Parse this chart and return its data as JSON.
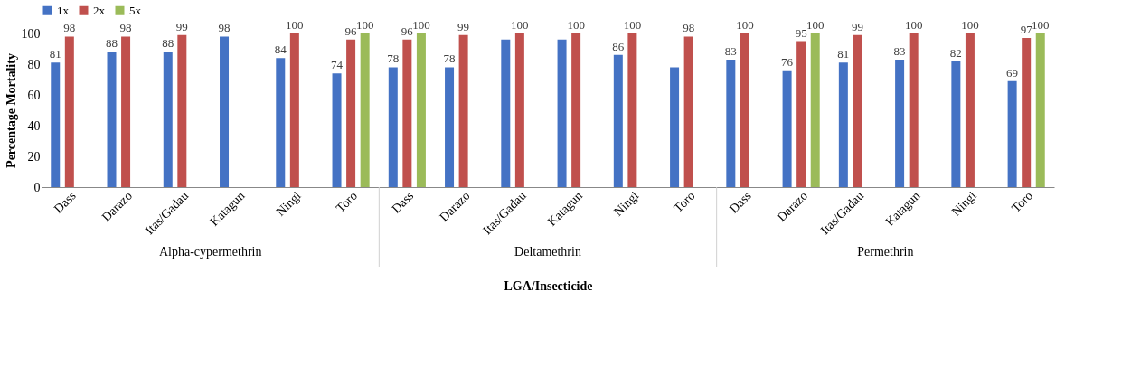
{
  "chart_data": {
    "type": "bar",
    "ylabel": "Percentage Mortality",
    "xlabel": "LGA/Insecticide",
    "categories": [
      "Dass",
      "Darazo",
      "Itas/Gadau",
      "Katagun",
      "Ningi",
      "Toro",
      "Dass",
      "Darazo",
      "Itas/Gadau",
      "Katagun",
      "Ningi",
      "Toro",
      "Dass",
      "Darazo",
      "Itas/Gadau",
      "Katagun",
      "Ningi",
      "Toro"
    ],
    "annotations": [
      "Alpha-cypermethrin",
      "Deltamethrin",
      "Permethrin"
    ],
    "series": [
      {
        "name": "1x",
        "color": "#4472c4",
        "values": [
          81,
          88,
          88,
          98,
          84,
          74,
          78,
          78,
          96,
          96,
          86,
          78,
          83,
          76,
          81,
          83,
          82,
          69
        ],
        "value_labels": [
          "81",
          "88",
          "88",
          "98",
          "84",
          "74",
          "78",
          "78",
          null,
          null,
          "86",
          null,
          "83",
          "76",
          "81",
          "83",
          "82",
          "69"
        ]
      },
      {
        "name": "2x",
        "color": "#c0504d",
        "values": [
          98,
          98,
          99,
          null,
          100,
          96,
          96,
          99,
          100,
          100,
          100,
          98,
          100,
          95,
          99,
          100,
          100,
          97
        ],
        "value_labels": [
          "98",
          "98",
          "99",
          null,
          "100",
          "96",
          "96",
          "99",
          "100",
          "100",
          "100",
          "98",
          "100",
          "95",
          "99",
          "100",
          "100",
          "97"
        ]
      },
      {
        "name": "5x",
        "color": "#9bbb59",
        "values": [
          null,
          null,
          null,
          null,
          null,
          100,
          100,
          null,
          null,
          null,
          null,
          null,
          null,
          100,
          null,
          null,
          null,
          100
        ],
        "value_labels": [
          null,
          null,
          null,
          null,
          null,
          "100",
          "100",
          null,
          null,
          null,
          null,
          null,
          null,
          "100",
          null,
          null,
          null,
          "100"
        ]
      }
    ],
    "ylim": [
      0,
      100
    ],
    "yticks": [
      0,
      20,
      40,
      60,
      80,
      100
    ],
    "grid": false,
    "legend": "top"
  }
}
